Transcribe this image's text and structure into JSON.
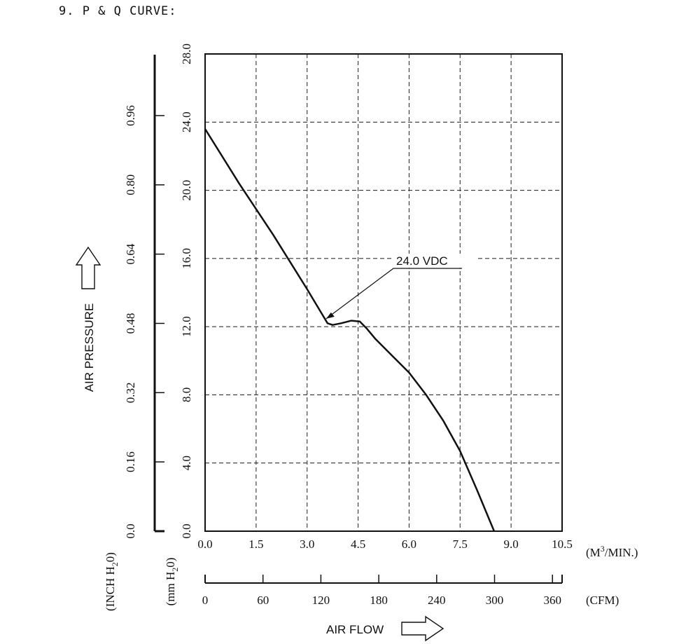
{
  "page": {
    "title": "9. P & Q CURVE:"
  },
  "chart_data": {
    "type": "line",
    "title": "P & Q CURVE",
    "xlabel": "AIR FLOW",
    "ylabel": "AIR PRESSURE",
    "xlim": [
      0,
      10.5
    ],
    "ylim": [
      0,
      28.0
    ],
    "grid": true,
    "x_ticks": [
      "0.0",
      "1.5",
      "3.0",
      "4.5",
      "6.0",
      "7.5",
      "9.0",
      "10.5"
    ],
    "x_unit_prefix": "(M",
    "x_unit_sup": "3",
    "x_unit_suffix": "/MIN.)",
    "cfm_ticks": [
      "0",
      "60",
      "120",
      "180",
      "240",
      "300",
      "360"
    ],
    "cfm_range": [
      0,
      370
    ],
    "cfm_unit": "(CFM)",
    "y_mm_ticks": [
      "0.0",
      "4.0",
      "8.0",
      "12.0",
      "16.0",
      "20.0",
      "24.0",
      "28.0"
    ],
    "y_mm_unit_prefix": "(mm H",
    "y_mm_unit_sub": "2",
    "y_mm_unit_suffix": "0)",
    "y_inch_ticks": [
      "0.0",
      "0.16",
      "0.32",
      "0.48",
      "0.64",
      "0.80",
      "0.96"
    ],
    "y_inch_unit_prefix": "(INCH H",
    "y_inch_unit_sub": "2",
    "y_inch_unit_suffix": "0)",
    "series": [
      {
        "name": "24.0 VDC",
        "x": [
          0.0,
          1.0,
          2.0,
          3.0,
          3.45,
          3.6,
          3.75,
          4.0,
          4.3,
          4.55,
          4.75,
          5.0,
          5.5,
          6.0,
          6.5,
          7.0,
          7.5,
          8.0,
          8.5
        ],
        "y": [
          23.6,
          20.4,
          17.4,
          14.2,
          12.7,
          12.2,
          12.1,
          12.2,
          12.35,
          12.3,
          11.9,
          11.3,
          10.3,
          9.3,
          8.0,
          6.5,
          4.7,
          2.4,
          0.0
        ]
      }
    ],
    "annotations": [
      {
        "text": "24.0 VDC",
        "x": 3.6,
        "y": 12.3
      }
    ]
  }
}
